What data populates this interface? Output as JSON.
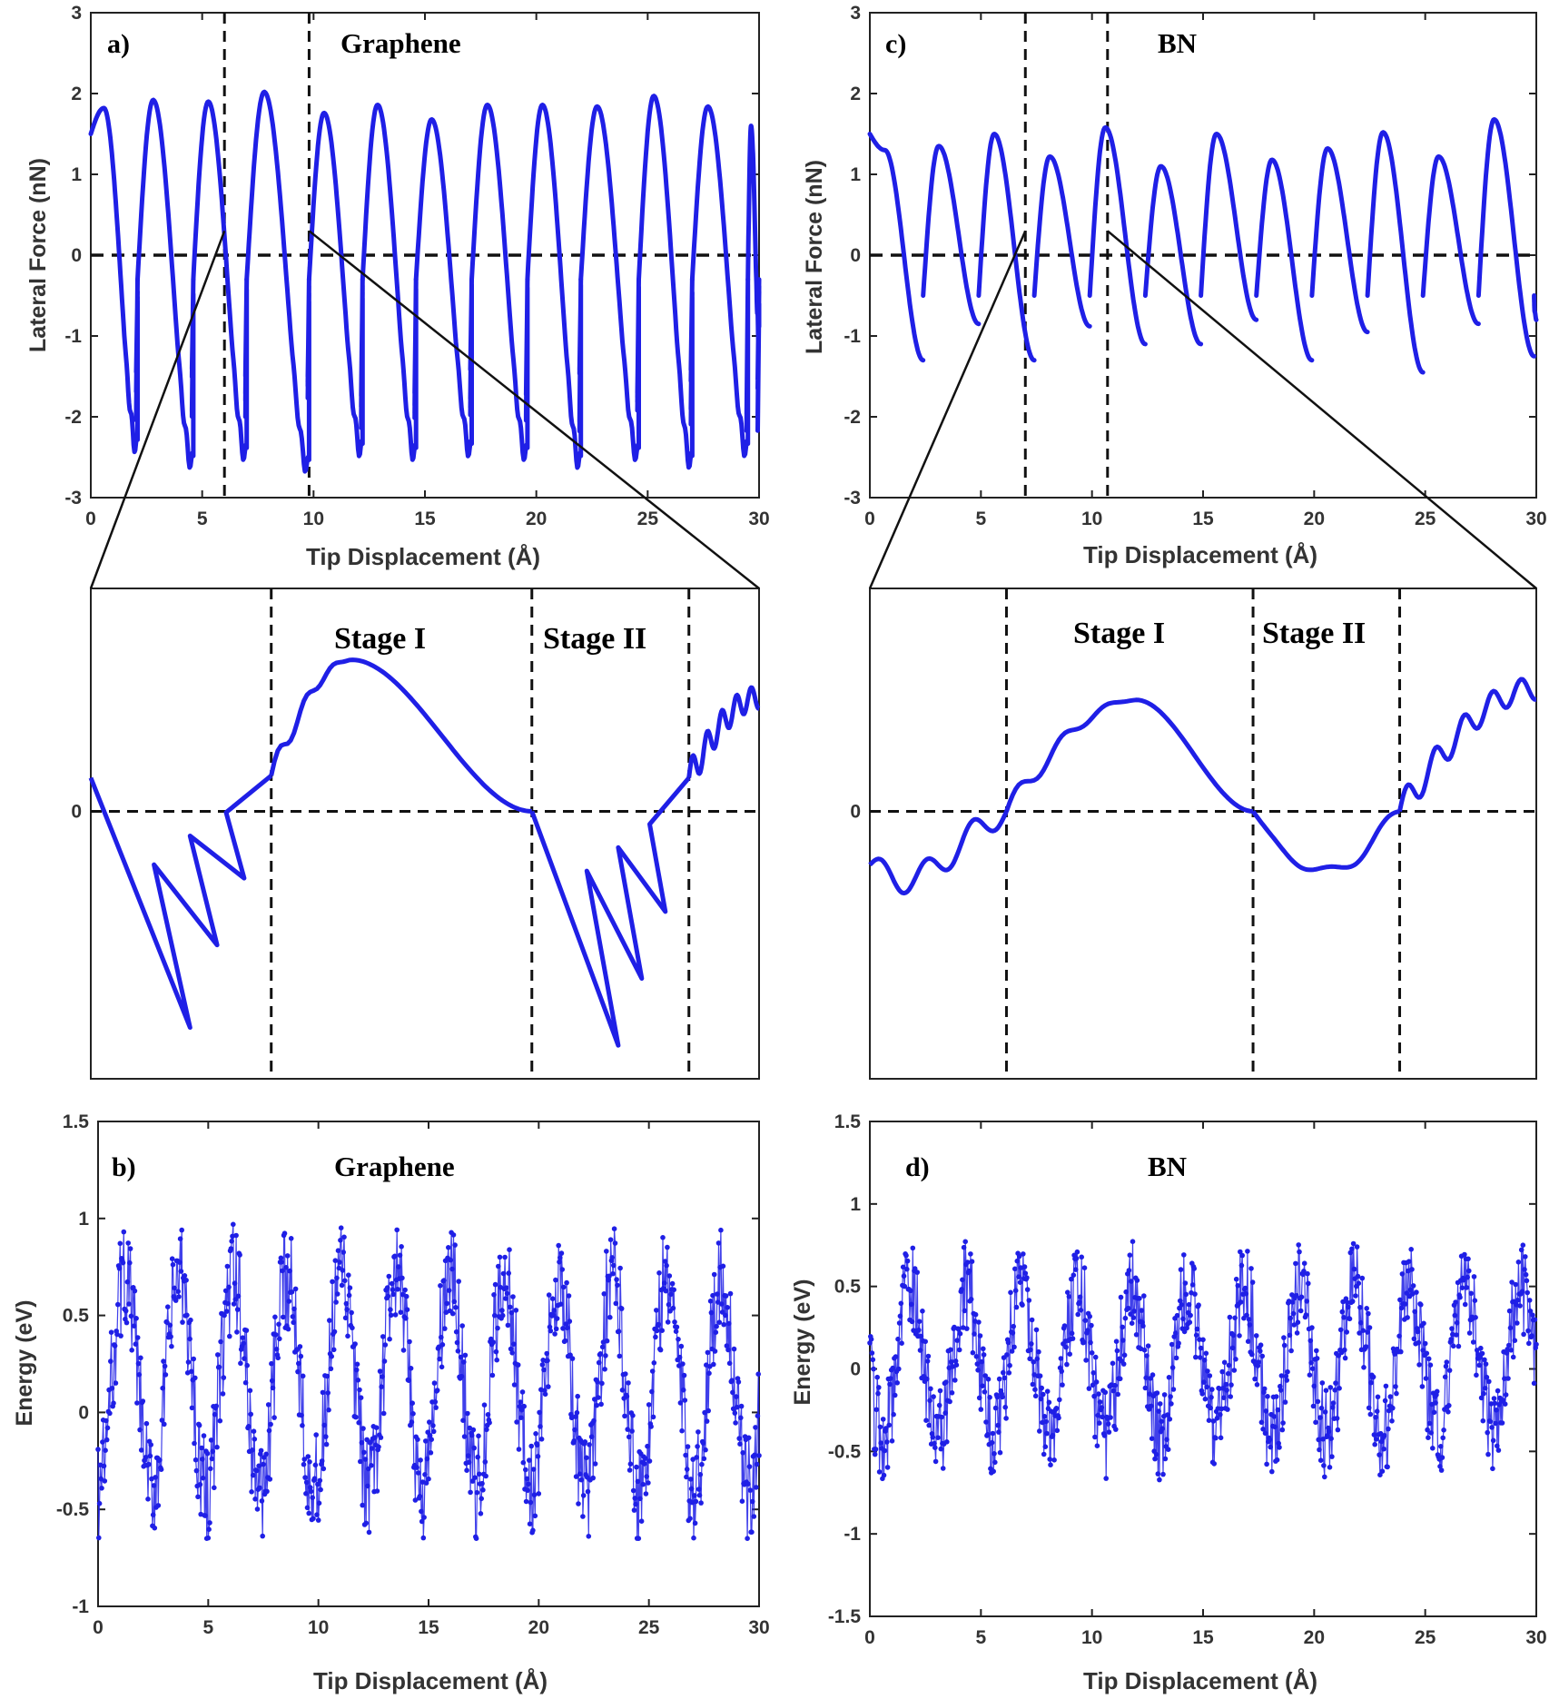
{
  "chart_data": [
    {
      "id": "a",
      "type": "line",
      "panel_label": "a)",
      "title": "Graphene",
      "xlabel": "Tip Displacement (Å)",
      "ylabel": "Lateral Force  (nN)",
      "xlim": [
        0,
        30
      ],
      "ylim": [
        -3,
        3
      ],
      "xticks": [
        "0",
        "5",
        "10",
        "15",
        "20",
        "25",
        "30"
      ],
      "yticks": [
        "3",
        "2",
        "1",
        "0",
        "-1",
        "-2",
        "-3"
      ],
      "reference_line_y": 0,
      "zoom_window_x": [
        6.0,
        9.8
      ],
      "series_color": "#1f1fe6",
      "cycles": [
        {
          "x0": 0.0,
          "x1": 2.1,
          "peak": 1.82,
          "min": -2.4
        },
        {
          "x0": 2.1,
          "x1": 4.6,
          "peak": 1.92,
          "min": -2.6
        },
        {
          "x0": 4.6,
          "x1": 7.0,
          "peak": 1.9,
          "min": -2.5
        },
        {
          "x0": 7.0,
          "x1": 9.8,
          "peak": 2.02,
          "min": -2.65
        },
        {
          "x0": 9.8,
          "x1": 12.2,
          "peak": 1.76,
          "min": -2.45
        },
        {
          "x0": 12.2,
          "x1": 14.6,
          "peak": 1.86,
          "min": -2.5
        },
        {
          "x0": 14.6,
          "x1": 17.1,
          "peak": 1.68,
          "min": -2.45
        },
        {
          "x0": 17.1,
          "x1": 19.6,
          "peak": 1.86,
          "min": -2.5
        },
        {
          "x0": 19.6,
          "x1": 22.0,
          "peak": 1.86,
          "min": -2.6
        },
        {
          "x0": 22.0,
          "x1": 24.6,
          "peak": 1.84,
          "min": -2.5
        },
        {
          "x0": 24.6,
          "x1": 27.0,
          "peak": 1.97,
          "min": -2.6
        },
        {
          "x0": 27.0,
          "x1": 29.5,
          "peak": 1.84,
          "min": -2.45
        },
        {
          "x0": 29.5,
          "x1": 30.0,
          "peak": 1.6,
          "min": -1.0
        }
      ]
    },
    {
      "id": "a-inset",
      "type": "line",
      "ytick": "0",
      "stage_labels": [
        "Stage I",
        "Stage II"
      ],
      "divider_x": [
        0.27,
        0.66,
        0.895
      ],
      "ylim": [
        -1.2,
        1.0
      ],
      "segments": [
        {
          "kind": "stick",
          "x_start": 0.0,
          "x_end": 0.27,
          "y_start": 0.15,
          "loops": [
            -0.97,
            -0.6,
            -0.3
          ],
          "y_end": 0.16
        },
        {
          "kind": "climb",
          "x_start": 0.27,
          "x_end": 0.66,
          "y_start": 0.16,
          "peak_x": 0.39,
          "peak": 0.68
        },
        {
          "kind": "stick",
          "x_start": 0.66,
          "x_end": 0.895,
          "y_start": 0.0,
          "loops": [
            -1.05,
            -0.75,
            -0.45
          ],
          "y_end": 0.15
        },
        {
          "kind": "climb_end",
          "x_start": 0.895,
          "x_end": 1.0,
          "y_start": 0.15,
          "y_end": 0.51
        }
      ]
    },
    {
      "id": "b",
      "type": "scatter",
      "panel_label": "b)",
      "title": "Graphene",
      "xlabel": "Tip Displacement (Å)",
      "ylabel": "Energy (eV)",
      "xlim": [
        0,
        30
      ],
      "ylim": [
        -1,
        1.5
      ],
      "xticks": [
        "0",
        "5",
        "10",
        "15",
        "20",
        "25",
        "30"
      ],
      "yticks": [
        "1.5",
        "1",
        "0.5",
        "0",
        "-0.5",
        "-1"
      ],
      "series_color": "#1f1fe6",
      "period": 2.46,
      "phase": 0.6,
      "amplitude": 0.55,
      "offset": 0.15,
      "max": 1.15,
      "min": -0.65
    },
    {
      "id": "c",
      "type": "line",
      "panel_label": "c)",
      "title": "BN",
      "xlabel": "Tip Displacement (Å)",
      "ylabel": "Lateral Force  (nN)",
      "xlim": [
        0,
        30
      ],
      "ylim": [
        -3,
        3
      ],
      "xticks": [
        "0",
        "5",
        "10",
        "15",
        "20",
        "25",
        "30"
      ],
      "yticks": [
        "3",
        "2",
        "1",
        "0",
        "-1",
        "-2",
        "-3"
      ],
      "reference_line_y": 0,
      "zoom_window_x": [
        7.0,
        10.7
      ],
      "series_color": "#1f1fe6",
      "cycles": [
        {
          "x0": 0.0,
          "x1": 2.4,
          "peak": 1.3,
          "min": -1.3
        },
        {
          "x0": 2.4,
          "x1": 4.9,
          "peak": 1.35,
          "min": -0.85
        },
        {
          "x0": 4.9,
          "x1": 7.4,
          "peak": 1.5,
          "min": -1.3
        },
        {
          "x0": 7.4,
          "x1": 9.9,
          "peak": 1.22,
          "min": -0.88
        },
        {
          "x0": 9.9,
          "x1": 12.4,
          "peak": 1.58,
          "min": -1.1
        },
        {
          "x0": 12.4,
          "x1": 14.9,
          "peak": 1.1,
          "min": -1.1
        },
        {
          "x0": 14.9,
          "x1": 17.4,
          "peak": 1.5,
          "min": -0.8
        },
        {
          "x0": 17.4,
          "x1": 19.9,
          "peak": 1.18,
          "min": -1.3
        },
        {
          "x0": 19.9,
          "x1": 22.4,
          "peak": 1.32,
          "min": -0.95
        },
        {
          "x0": 22.4,
          "x1": 24.9,
          "peak": 1.52,
          "min": -1.45
        },
        {
          "x0": 24.9,
          "x1": 27.4,
          "peak": 1.22,
          "min": -0.85
        },
        {
          "x0": 27.4,
          "x1": 29.9,
          "peak": 1.68,
          "min": -1.25
        },
        {
          "x0": 29.9,
          "x1": 30.0,
          "peak": -0.7,
          "min": -0.8
        }
      ]
    },
    {
      "id": "c-inset",
      "type": "line",
      "ytick": "0",
      "stage_labels": [
        "Stage I",
        "Stage II"
      ],
      "divider_x": [
        0.205,
        0.575,
        0.795
      ],
      "ylim": [
        -1.2,
        1.0
      ],
      "segments": [
        {
          "kind": "descend",
          "x_start": 0.0,
          "x_end": 0.205,
          "y_start": -0.24,
          "bumps": 3,
          "low": -0.48,
          "y_end": 0.0
        },
        {
          "kind": "climb",
          "x_start": 0.205,
          "x_end": 0.575,
          "y_start": 0.0,
          "peak_x": 0.4,
          "peak": 0.5
        },
        {
          "kind": "dip",
          "x_start": 0.575,
          "x_end": 0.795,
          "y_start": 0.0,
          "low": -0.3,
          "y_end": 0.0
        },
        {
          "kind": "climb_end",
          "x_start": 0.795,
          "x_end": 1.0,
          "y_start": 0.0,
          "y_end": 0.55
        }
      ]
    },
    {
      "id": "d",
      "type": "scatter",
      "panel_label": "d)",
      "title": "BN",
      "xlabel": "Tip Displacement (Å)",
      "ylabel": "Energy (eV)",
      "xlim": [
        0,
        30
      ],
      "ylim": [
        -1.5,
        1.5
      ],
      "xticks": [
        "0",
        "5",
        "10",
        "15",
        "20",
        "25",
        "30"
      ],
      "yticks": [
        "1.5",
        "1",
        "0.5",
        "0",
        "-0.5",
        "-1",
        "-1.5"
      ],
      "series_color": "#1f1fe6",
      "period": 2.5,
      "phase": 1.2,
      "amplitude": 0.45,
      "offset": 0.05,
      "max": 0.85,
      "min": -0.7
    }
  ]
}
